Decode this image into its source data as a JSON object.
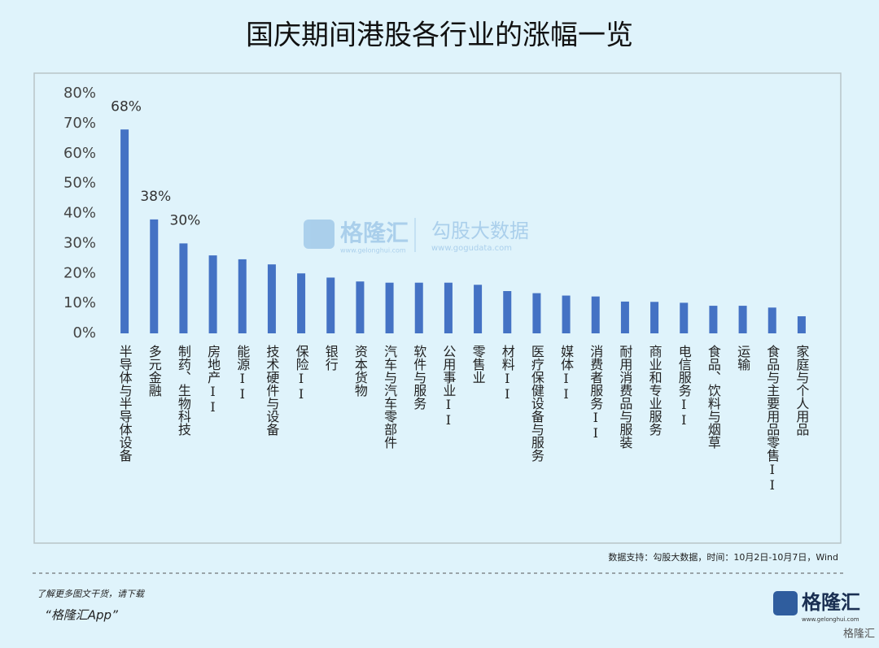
{
  "chart_data": {
    "type": "bar",
    "title": "国庆期间港股各行业的涨幅一览",
    "categories": [
      "半导体与半导体设备",
      "多元金融",
      "制药、生物科技",
      "房地产II",
      "能源II",
      "技术硬件与设备",
      "保险II",
      "银行",
      "资本货物",
      "汽车与汽车零部件",
      "软件与服务",
      "公用事业II",
      "零售业",
      "材料II",
      "医疗保健设备与服务",
      "媒体II",
      "消费者服务II",
      "耐用消费品与服装",
      "商业和专业服务",
      "电信服务II",
      "食品、饮料与烟草",
      "运输",
      "食品与主要用品零售II",
      "家庭与个人用品"
    ],
    "values": [
      68,
      38,
      30,
      26,
      24.7,
      23,
      20,
      18.6,
      17.3,
      16.9,
      16.9,
      16.9,
      16.2,
      14.1,
      13.4,
      12.6,
      12.3,
      10.6,
      10.5,
      10.2,
      9.2,
      9.2,
      8.6,
      5.7
    ],
    "value_labels": [
      "68%",
      "38%",
      "30%",
      null,
      null,
      null,
      null,
      null,
      null,
      null,
      null,
      null,
      null,
      null,
      null,
      null,
      null,
      null,
      null,
      null,
      null,
      null,
      null,
      null
    ],
    "color": "#4472c4",
    "ylim": [
      0,
      80
    ],
    "yticks": [
      {
        "value": 0,
        "label": "0%"
      },
      {
        "value": 10,
        "label": "10%"
      },
      {
        "value": 20,
        "label": "20%"
      },
      {
        "value": 30,
        "label": "30%"
      },
      {
        "value": 40,
        "label": "40%"
      },
      {
        "value": 50,
        "label": "50%"
      },
      {
        "value": 60,
        "label": "60%"
      },
      {
        "value": 70,
        "label": "70%"
      },
      {
        "value": 80,
        "label": "80%"
      }
    ],
    "grid": false,
    "source": "数据支持：勾股大数据，时间：10月2日-10月7日，Wind",
    "watermark": {
      "brand": "格隆汇",
      "brand_url": "www.gelonghui.com",
      "partner": "勾股大数据",
      "partner_url": "www.gogudata.com"
    }
  },
  "footer": {
    "note": "了解更多图文干货，请下载",
    "app": "“格隆汇App”",
    "logo": "格隆汇",
    "logo_url": "www.gelonghui.com",
    "corner": "格隆汇"
  }
}
